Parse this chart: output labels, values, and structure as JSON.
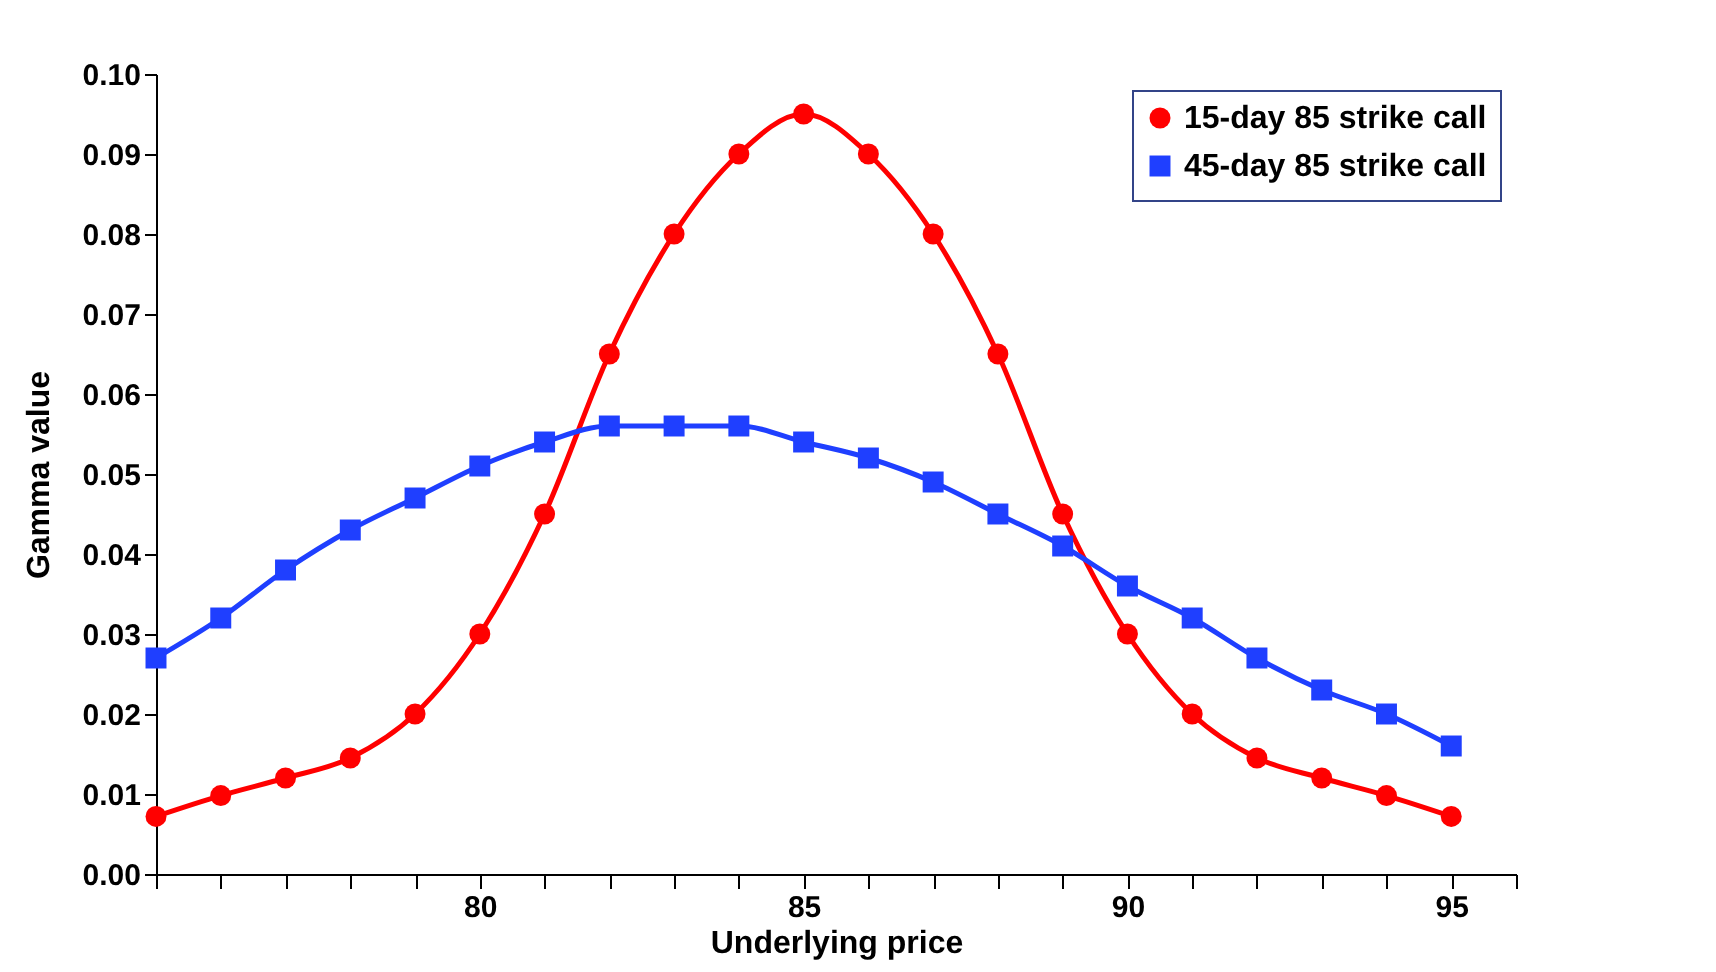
{
  "chart_data": {
    "type": "line",
    "xlabel": "Underlying price",
    "ylabel": "Gamma value",
    "x": [
      75,
      76,
      77,
      78,
      79,
      80,
      81,
      82,
      83,
      84,
      85,
      86,
      87,
      88,
      89,
      90,
      91,
      92,
      93,
      94,
      95
    ],
    "series": [
      {
        "name": "15-day 85 strike call",
        "color": "#ff0000",
        "marker": "circle",
        "values": [
          0.0072,
          0.0098,
          0.012,
          0.0145,
          0.02,
          0.03,
          0.045,
          0.065,
          0.08,
          0.09,
          0.095,
          0.09,
          0.08,
          0.065,
          0.045,
          0.03,
          0.02,
          0.0145,
          0.012,
          0.0098,
          0.0072
        ]
      },
      {
        "name": "45-day 85 strike call",
        "color": "#1f3fff",
        "marker": "square",
        "values": [
          0.027,
          0.032,
          0.038,
          0.043,
          0.047,
          0.051,
          0.054,
          0.056,
          0.056,
          0.056,
          0.054,
          0.052,
          0.049,
          0.045,
          0.041,
          0.036,
          0.032,
          0.027,
          0.023,
          0.02,
          0.016
        ]
      }
    ],
    "xlim": [
      75,
      96
    ],
    "xticks": [
      {
        "value": 75,
        "label": null
      },
      {
        "value": 76,
        "label": null
      },
      {
        "value": 77,
        "label": null
      },
      {
        "value": 78,
        "label": null
      },
      {
        "value": 79,
        "label": null
      },
      80,
      {
        "value": 81,
        "label": null
      },
      {
        "value": 82,
        "label": null
      },
      {
        "value": 83,
        "label": null
      },
      {
        "value": 84,
        "label": null
      },
      85,
      {
        "value": 86,
        "label": null
      },
      {
        "value": 87,
        "label": null
      },
      {
        "value": 88,
        "label": null
      },
      {
        "value": 89,
        "label": null
      },
      90,
      {
        "value": 91,
        "label": null
      },
      {
        "value": 92,
        "label": null
      },
      {
        "value": 93,
        "label": null
      },
      {
        "value": 94,
        "label": null
      },
      95,
      {
        "value": 96,
        "label": null
      }
    ],
    "ylim": [
      0,
      0.1
    ],
    "yticks": [
      {
        "value": 0,
        "label": "0.00"
      },
      {
        "value": 0.01,
        "label": "0.01"
      },
      {
        "value": 0.02,
        "label": "0.02"
      },
      {
        "value": 0.03,
        "label": "0.03"
      },
      {
        "value": 0.04,
        "label": "0.04"
      },
      {
        "value": 0.05,
        "label": "0.05"
      },
      {
        "value": 0.06,
        "label": "0.06"
      },
      {
        "value": 0.07,
        "label": "0.07"
      },
      {
        "value": 0.08,
        "label": "0.08"
      },
      {
        "value": 0.09,
        "label": "0.09"
      },
      {
        "value": 0.1,
        "label": "0.10"
      }
    ],
    "grid": false,
    "legend": "top right",
    "line_style": "solid"
  }
}
